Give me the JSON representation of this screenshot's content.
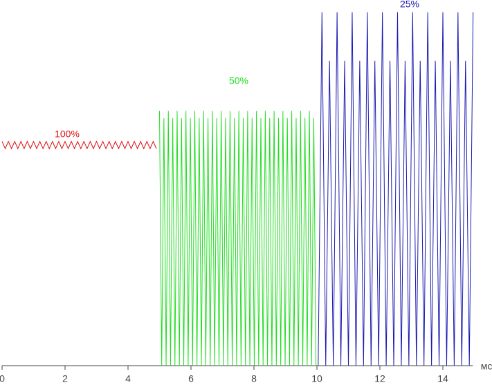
{
  "chart_data": {
    "type": "line",
    "x_label": "мс",
    "xlim": [
      0,
      15
    ],
    "xticks": [
      0,
      2,
      4,
      6,
      8,
      10,
      12,
      14
    ],
    "ylim": [
      0,
      100
    ],
    "series": [
      {
        "name": "100%",
        "color": "#e01010",
        "x": [
          0,
          0.1,
          0.2,
          0.3,
          0.4,
          0.5,
          0.6,
          0.7,
          0.8,
          0.9,
          1,
          1.1,
          1.2,
          1.3,
          1.4,
          1.5,
          1.6,
          1.7,
          1.8,
          1.9,
          2,
          2.1,
          2.2,
          2.3,
          2.4,
          2.5,
          2.6,
          2.7,
          2.8,
          2.9,
          3,
          3.1,
          3.2,
          3.3,
          3.4,
          3.5,
          3.6,
          3.7,
          3.8,
          3.9,
          4,
          4.1,
          4.2,
          4.3,
          4.4,
          4.5,
          4.6,
          4.7,
          4.8,
          4.9
        ],
        "values": [
          62.5,
          60.5,
          62.5,
          60.5,
          62.5,
          60.5,
          62.5,
          60.5,
          62.5,
          60.5,
          62.5,
          60.5,
          62.5,
          60.5,
          62.5,
          60.5,
          62.5,
          60.5,
          62.5,
          60.5,
          62.5,
          60.5,
          62.5,
          60.5,
          62.5,
          60.5,
          62.5,
          60.5,
          62.5,
          60.5,
          62.5,
          60.5,
          62.5,
          60.5,
          62.5,
          60.5,
          62.5,
          60.5,
          62.5,
          60.5,
          62.5,
          60.5,
          62.5,
          60.5,
          62.5,
          60.5,
          62.5,
          60.5,
          62.5,
          60.5
        ]
      },
      {
        "name": "50%",
        "color": "#22dd22",
        "x": [
          5,
          5.07,
          5.14,
          5.21,
          5.28,
          5.35,
          5.42,
          5.49,
          5.56,
          5.63,
          5.7,
          5.77,
          5.84,
          5.91,
          5.98,
          6.05,
          6.12,
          6.19,
          6.26,
          6.33,
          6.4,
          6.47,
          6.54,
          6.61,
          6.68,
          6.75,
          6.82,
          6.89,
          6.96,
          7.03,
          7.1,
          7.17,
          7.24,
          7.31,
          7.38,
          7.45,
          7.52,
          7.59,
          7.66,
          7.73,
          7.8,
          7.87,
          7.94,
          8.01,
          8.08,
          8.15,
          8.22,
          8.29,
          8.36,
          8.43,
          8.5,
          8.57,
          8.64,
          8.71,
          8.78,
          8.85,
          8.92,
          8.99,
          9.06,
          9.13,
          9.2,
          9.27,
          9.34,
          9.41,
          9.48,
          9.55,
          9.62,
          9.69,
          9.76,
          9.83,
          9.9,
          9.97
        ],
        "values": [
          71,
          0,
          69,
          0,
          71,
          0,
          69,
          0,
          71,
          0,
          69,
          0,
          71,
          0,
          69,
          0,
          71,
          0,
          69,
          0,
          71,
          0,
          69,
          0,
          71,
          0,
          69,
          0,
          71,
          0,
          69,
          0,
          71,
          0,
          69,
          0,
          71,
          0,
          69,
          0,
          71,
          0,
          69,
          0,
          71,
          0,
          69,
          0,
          71,
          0,
          69,
          0,
          71,
          0,
          69,
          0,
          71,
          0,
          69,
          0,
          71,
          0,
          69,
          0,
          71,
          0,
          69,
          0,
          71,
          0,
          69,
          0
        ]
      },
      {
        "name": "25%",
        "color": "#1a1ab0",
        "x": [
          10.04,
          10.16,
          10.28,
          10.4,
          10.52,
          10.64,
          10.76,
          10.88,
          11,
          11.12,
          11.24,
          11.36,
          11.48,
          11.6,
          11.72,
          11.84,
          11.96,
          12.08,
          12.2,
          12.32,
          12.44,
          12.56,
          12.68,
          12.8,
          12.92,
          13.04,
          13.16,
          13.28,
          13.4,
          13.52,
          13.64,
          13.76,
          13.88,
          14,
          14.12,
          14.24,
          14.36,
          14.48,
          14.6,
          14.72,
          14.84,
          14.96
        ],
        "values": [
          0,
          98.5,
          0,
          85,
          0,
          98.5,
          0,
          85,
          0,
          98.5,
          0,
          85,
          0,
          98.5,
          0,
          85,
          0,
          98.5,
          0,
          85,
          0,
          98.5,
          0,
          85,
          0,
          98.5,
          0,
          85,
          0,
          98.5,
          0,
          85,
          0,
          98.5,
          0,
          85,
          0,
          98.5,
          0,
          85,
          0,
          98.5
        ]
      }
    ]
  }
}
